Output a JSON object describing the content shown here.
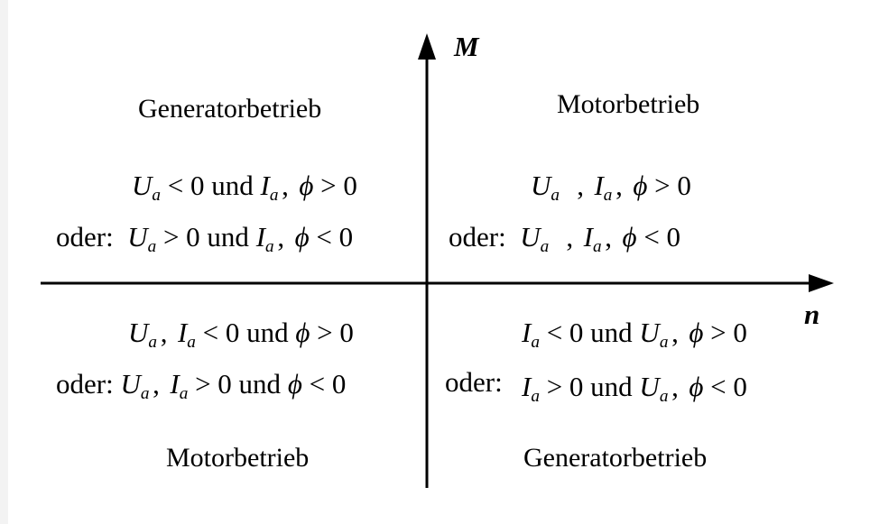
{
  "axes": {
    "y_label": "M",
    "x_label": "n"
  },
  "quadrants": {
    "upper_left": {
      "title": "Generatorbetrieb",
      "cond1": {
        "a": "< 0 und",
        "b": "> 0"
      },
      "prefix2": "oder:",
      "cond2": {
        "a": "> 0 und",
        "b": "< 0"
      }
    },
    "upper_right": {
      "title": "Motorbetrieb",
      "cond1": {
        "b": "> 0"
      },
      "prefix2": "oder:",
      "cond2": {
        "b": "< 0"
      }
    },
    "lower_left": {
      "title": "Motorbetrieb",
      "cond1": {
        "a": "< 0 und",
        "b": "> 0"
      },
      "prefix2": "oder:",
      "cond2": {
        "a": "> 0 und",
        "b": "< 0"
      }
    },
    "lower_right": {
      "title": "Generatorbetrieb",
      "cond1": {
        "a": "< 0 und",
        "b": "> 0"
      },
      "prefix2": "oder:",
      "cond2": {
        "a": "> 0 und",
        "b": "< 0"
      }
    }
  },
  "symbols": {
    "U": "U",
    "I": "I",
    "sub_a": "a",
    "phi": "ϕ",
    "comma": ","
  }
}
